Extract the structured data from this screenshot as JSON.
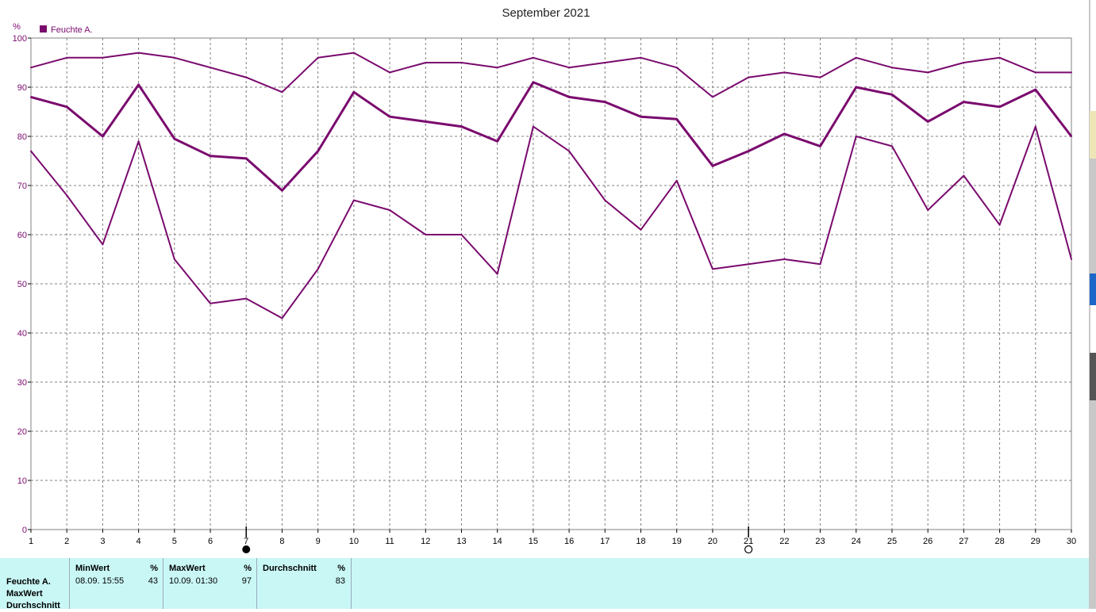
{
  "chart_data": {
    "type": "line",
    "title": "September 2021",
    "ylabel": "%",
    "ylim": [
      0,
      100
    ],
    "yticks": [
      0,
      10,
      20,
      30,
      40,
      50,
      60,
      70,
      80,
      90,
      100
    ],
    "x": [
      1,
      2,
      3,
      4,
      5,
      6,
      7,
      8,
      9,
      10,
      11,
      12,
      13,
      14,
      15,
      16,
      17,
      18,
      19,
      20,
      21,
      22,
      23,
      24,
      25,
      26,
      27,
      28,
      29,
      30
    ],
    "legend": [
      "Feuchte A."
    ],
    "legend_position": "top-left",
    "grid": true,
    "color": "#7a0a6e",
    "series": [
      {
        "values": [
          94,
          96,
          96,
          97,
          96,
          94,
          92,
          89,
          96,
          97,
          93,
          95,
          95,
          94,
          96,
          94,
          95,
          96,
          94,
          88,
          92,
          93,
          92,
          96,
          94,
          93,
          95,
          96,
          93,
          93
        ]
      },
      {
        "values": [
          88,
          86,
          80,
          90.5,
          79.5,
          76,
          75.5,
          69,
          77,
          89,
          84,
          83,
          82,
          79,
          91,
          88,
          87,
          84,
          83.5,
          74,
          77,
          80.5,
          78,
          90,
          88.5,
          83,
          87,
          86,
          89.5,
          80
        ]
      },
      {
        "values": [
          77,
          68,
          58,
          79,
          55,
          46,
          47,
          43,
          53,
          67,
          65,
          60,
          60,
          52,
          82,
          77,
          67,
          61,
          71,
          53,
          54,
          55,
          54,
          80,
          78,
          65,
          72,
          62,
          82,
          55
        ]
      }
    ],
    "moon_phases": [
      {
        "day": 7,
        "phase": "new-moon"
      },
      {
        "day": 21,
        "phase": "full-moon"
      }
    ]
  },
  "stats": {
    "row_labels": [
      "Feuchte A.",
      "MaxWert",
      "Durchschnitt"
    ],
    "min": {
      "header": "MinWert",
      "unit": "%",
      "time": "08.09.  15:55",
      "value": "43"
    },
    "max": {
      "header": "MaxWert",
      "unit": "%",
      "time": "10.09.  01:30",
      "value": "97"
    },
    "avg": {
      "header": "Durchschnitt",
      "unit": "%",
      "value": "83"
    }
  }
}
